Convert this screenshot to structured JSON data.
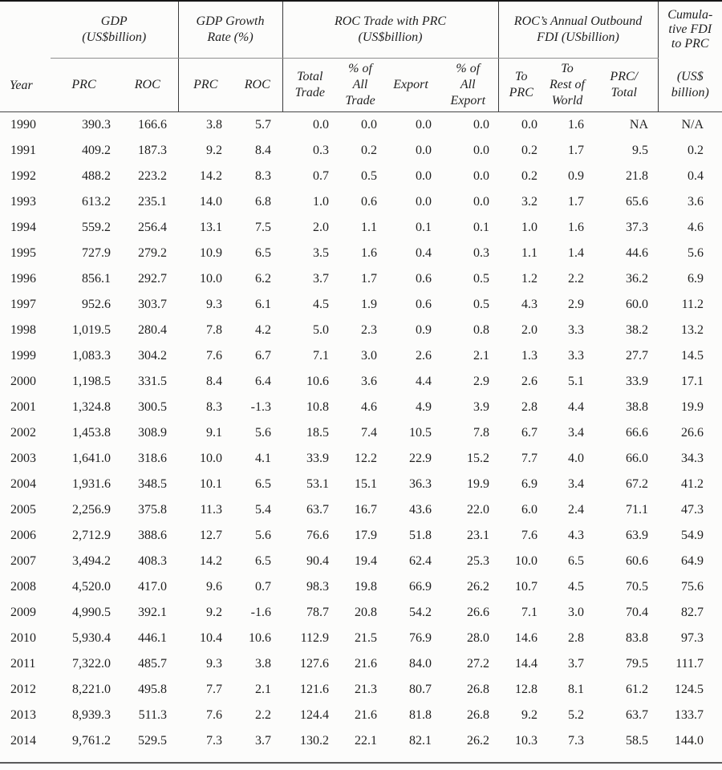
{
  "table": {
    "header": {
      "year_label": "Year",
      "groups": [
        {
          "id": "gdp",
          "lines": [
            "GDP",
            "(US$billion)"
          ]
        },
        {
          "id": "gdp-growth",
          "lines": [
            "GDP Growth",
            "Rate (%)"
          ]
        },
        {
          "id": "roc-trade-prc",
          "lines": [
            "ROC Trade with PRC",
            "(US$billion)"
          ]
        },
        {
          "id": "outbound-fdi",
          "lines": [
            "ROC’s Annual Outbound",
            "FDI (USbillion)"
          ]
        },
        {
          "id": "cumulative-fdi",
          "lines": [
            "Cumula-",
            "tive FDI",
            "to PRC"
          ]
        }
      ],
      "sub_columns": [
        {
          "id": "gdp-prc",
          "lines": [
            "PRC"
          ]
        },
        {
          "id": "gdp-roc",
          "lines": [
            "ROC"
          ]
        },
        {
          "id": "growth-prc",
          "lines": [
            "PRC"
          ]
        },
        {
          "id": "growth-roc",
          "lines": [
            "ROC"
          ]
        },
        {
          "id": "total-trade",
          "lines": [
            "Total",
            "Trade"
          ]
        },
        {
          "id": "pct-all-trade",
          "lines": [
            "% of",
            "All",
            "Trade"
          ]
        },
        {
          "id": "export",
          "lines": [
            "Export"
          ]
        },
        {
          "id": "pct-all-export",
          "lines": [
            "% of",
            "All",
            "Export"
          ]
        },
        {
          "id": "to-prc",
          "lines": [
            "To",
            "PRC"
          ]
        },
        {
          "id": "to-rest-world",
          "lines": [
            "To",
            "Rest of",
            "World"
          ]
        },
        {
          "id": "prc-total",
          "lines": [
            "PRC/",
            "Total"
          ]
        },
        {
          "id": "cum-unit",
          "lines": [
            "(US$",
            "billion)"
          ]
        }
      ]
    },
    "rows": [
      [
        "1990",
        "390.3",
        "166.6",
        "3.8",
        "5.7",
        "0.0",
        "0.0",
        "0.0",
        "0.0",
        "0.0",
        "1.6",
        "NA",
        "N/A"
      ],
      [
        "1991",
        "409.2",
        "187.3",
        "9.2",
        "8.4",
        "0.3",
        "0.2",
        "0.0",
        "0.0",
        "0.2",
        "1.7",
        "9.5",
        "0.2"
      ],
      [
        "1992",
        "488.2",
        "223.2",
        "14.2",
        "8.3",
        "0.7",
        "0.5",
        "0.0",
        "0.0",
        "0.2",
        "0.9",
        "21.8",
        "0.4"
      ],
      [
        "1993",
        "613.2",
        "235.1",
        "14.0",
        "6.8",
        "1.0",
        "0.6",
        "0.0",
        "0.0",
        "3.2",
        "1.7",
        "65.6",
        "3.6"
      ],
      [
        "1994",
        "559.2",
        "256.4",
        "13.1",
        "7.5",
        "2.0",
        "1.1",
        "0.1",
        "0.1",
        "1.0",
        "1.6",
        "37.3",
        "4.6"
      ],
      [
        "1995",
        "727.9",
        "279.2",
        "10.9",
        "6.5",
        "3.5",
        "1.6",
        "0.4",
        "0.3",
        "1.1",
        "1.4",
        "44.6",
        "5.6"
      ],
      [
        "1996",
        "856.1",
        "292.7",
        "10.0",
        "6.2",
        "3.7",
        "1.7",
        "0.6",
        "0.5",
        "1.2",
        "2.2",
        "36.2",
        "6.9"
      ],
      [
        "1997",
        "952.6",
        "303.7",
        "9.3",
        "6.1",
        "4.5",
        "1.9",
        "0.6",
        "0.5",
        "4.3",
        "2.9",
        "60.0",
        "11.2"
      ],
      [
        "1998",
        "1,019.5",
        "280.4",
        "7.8",
        "4.2",
        "5.0",
        "2.3",
        "0.9",
        "0.8",
        "2.0",
        "3.3",
        "38.2",
        "13.2"
      ],
      [
        "1999",
        "1,083.3",
        "304.2",
        "7.6",
        "6.7",
        "7.1",
        "3.0",
        "2.6",
        "2.1",
        "1.3",
        "3.3",
        "27.7",
        "14.5"
      ],
      [
        "2000",
        "1,198.5",
        "331.5",
        "8.4",
        "6.4",
        "10.6",
        "3.6",
        "4.4",
        "2.9",
        "2.6",
        "5.1",
        "33.9",
        "17.1"
      ],
      [
        "2001",
        "1,324.8",
        "300.5",
        "8.3",
        "-1.3",
        "10.8",
        "4.6",
        "4.9",
        "3.9",
        "2.8",
        "4.4",
        "38.8",
        "19.9"
      ],
      [
        "2002",
        "1,453.8",
        "308.9",
        "9.1",
        "5.6",
        "18.5",
        "7.4",
        "10.5",
        "7.8",
        "6.7",
        "3.4",
        "66.6",
        "26.6"
      ],
      [
        "2003",
        "1,641.0",
        "318.6",
        "10.0",
        "4.1",
        "33.9",
        "12.2",
        "22.9",
        "15.2",
        "7.7",
        "4.0",
        "66.0",
        "34.3"
      ],
      [
        "2004",
        "1,931.6",
        "348.5",
        "10.1",
        "6.5",
        "53.1",
        "15.1",
        "36.3",
        "19.9",
        "6.9",
        "3.4",
        "67.2",
        "41.2"
      ],
      [
        "2005",
        "2,256.9",
        "375.8",
        "11.3",
        "5.4",
        "63.7",
        "16.7",
        "43.6",
        "22.0",
        "6.0",
        "2.4",
        "71.1",
        "47.3"
      ],
      [
        "2006",
        "2,712.9",
        "388.6",
        "12.7",
        "5.6",
        "76.6",
        "17.9",
        "51.8",
        "23.1",
        "7.6",
        "4.3",
        "63.9",
        "54.9"
      ],
      [
        "2007",
        "3,494.2",
        "408.3",
        "14.2",
        "6.5",
        "90.4",
        "19.4",
        "62.4",
        "25.3",
        "10.0",
        "6.5",
        "60.6",
        "64.9"
      ],
      [
        "2008",
        "4,520.0",
        "417.0",
        "9.6",
        "0.7",
        "98.3",
        "19.8",
        "66.9",
        "26.2",
        "10.7",
        "4.5",
        "70.5",
        "75.6"
      ],
      [
        "2009",
        "4,990.5",
        "392.1",
        "9.2",
        "-1.6",
        "78.7",
        "20.8",
        "54.2",
        "26.6",
        "7.1",
        "3.0",
        "70.4",
        "82.7"
      ],
      [
        "2010",
        "5,930.4",
        "446.1",
        "10.4",
        "10.6",
        "112.9",
        "21.5",
        "76.9",
        "28.0",
        "14.6",
        "2.8",
        "83.8",
        "97.3"
      ],
      [
        "2011",
        "7,322.0",
        "485.7",
        "9.3",
        "3.8",
        "127.6",
        "21.6",
        "84.0",
        "27.2",
        "14.4",
        "3.7",
        "79.5",
        "111.7"
      ],
      [
        "2012",
        "8,221.0",
        "495.8",
        "7.7",
        "2.1",
        "121.6",
        "21.3",
        "80.7",
        "26.8",
        "12.8",
        "8.1",
        "61.2",
        "124.5"
      ],
      [
        "2013",
        "8,939.3",
        "511.3",
        "7.6",
        "2.2",
        "124.4",
        "21.6",
        "81.8",
        "26.8",
        "9.2",
        "5.2",
        "63.7",
        "133.7"
      ],
      [
        "2014",
        "9,761.2",
        "529.5",
        "7.3",
        "3.7",
        "130.2",
        "22.1",
        "82.1",
        "26.2",
        "10.3",
        "7.3",
        "58.5",
        "144.0"
      ]
    ]
  }
}
